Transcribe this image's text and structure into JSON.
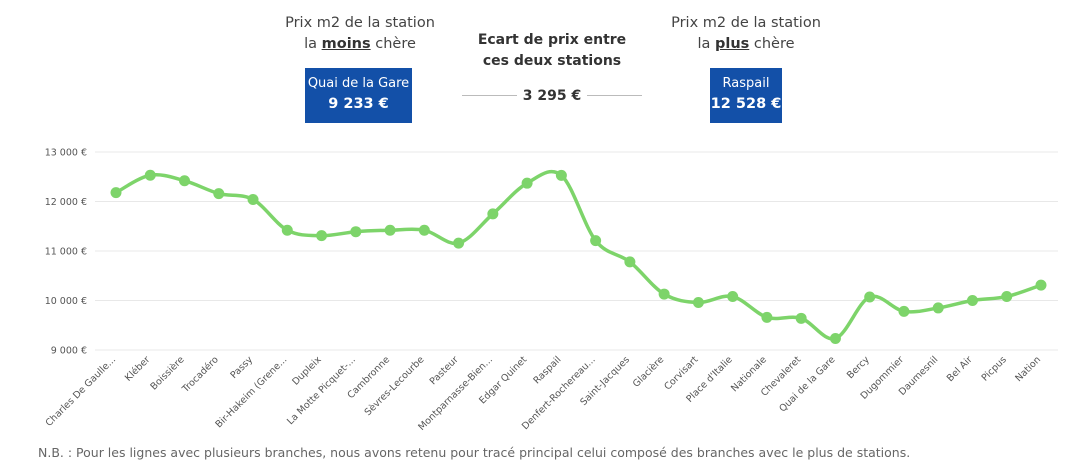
{
  "header": {
    "cheapest": {
      "caption_line1": "Prix m2 de la station",
      "caption_pre": "la ",
      "caption_bold": "moins",
      "caption_post": " chère",
      "station": "Quai de la Gare",
      "price": "9 233 €"
    },
    "gap": {
      "caption_line1": "Ecart de prix entre",
      "caption_line2": "ces deux stations",
      "value": "3 295 €"
    },
    "expensive": {
      "caption_line1": "Prix m2 de la station",
      "caption_pre": "la ",
      "caption_bold": "plus",
      "caption_post": " chère",
      "station": "Raspail",
      "price": "12 528 €"
    }
  },
  "colors": {
    "line": "#7dd46a",
    "box": "#1350a8",
    "grid": "#e8e8e8"
  },
  "footnote": "N.B. : Pour les lignes avec plusieurs branches, nous avons retenu pour tracé principal celui composé des branches avec le plus de stations.",
  "chart_data": {
    "type": "line",
    "categories": [
      "Charles De Gaulle...",
      "Kléber",
      "Boissière",
      "Trocadéro",
      "Passy",
      "Bir-Hakeim (Grene...",
      "Dupleix",
      "La Motte Picquet-...",
      "Cambronne",
      "Sèvres-Lecourbe",
      "Pasteur",
      "Montparnasse-Bien...",
      "Edgar Quinet",
      "Raspail",
      "Denfert-Rochereau...",
      "Saint-Jacques",
      "Glacière",
      "Corvisart",
      "Place d'Italie",
      "Nationale",
      "Chevaleret",
      "Quai de la Gare",
      "Bercy",
      "Dugommier",
      "Daumesnil",
      "Bel Air",
      "Picpus",
      "Nation"
    ],
    "values": [
      12180,
      12530,
      12420,
      12160,
      12040,
      11420,
      11310,
      11390,
      11420,
      11420,
      11160,
      11750,
      12370,
      12528,
      11210,
      10780,
      10130,
      9960,
      10080,
      9660,
      9640,
      9233,
      10070,
      9780,
      9850,
      10000,
      10080,
      10310
    ],
    "yticks": [
      9000,
      10000,
      11000,
      12000,
      13000
    ],
    "ytick_labels": [
      "9 000 €",
      "10 000 €",
      "11 000 €",
      "12 000 €",
      "13 000 €"
    ],
    "ylim": [
      9000,
      13000
    ],
    "grid": true,
    "legend": "none"
  }
}
